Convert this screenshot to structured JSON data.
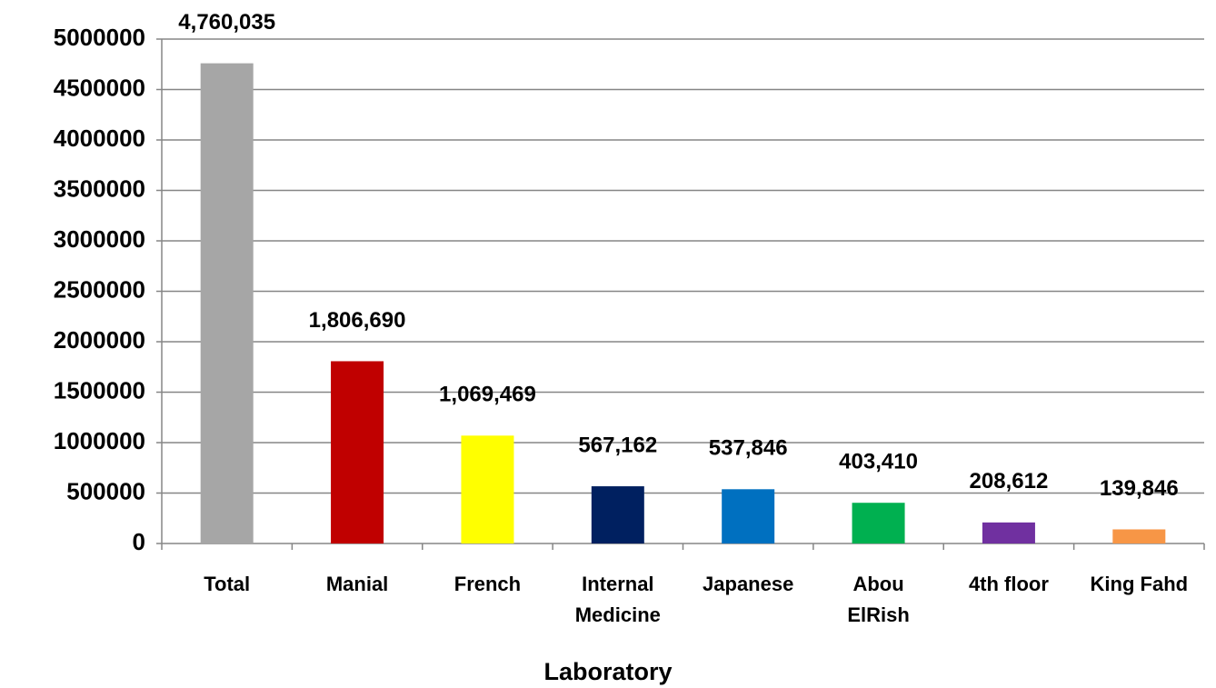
{
  "chart_data": {
    "type": "bar",
    "x_label": "Laboratory",
    "categories": [
      "Total",
      "Manial",
      "French",
      "Internal Medicine",
      "Japanese",
      "Abou ElRish",
      "4th floor",
      "King Fahd"
    ],
    "values": [
      4760035,
      1806690,
      1069469,
      567162,
      537846,
      403410,
      208612,
      139846
    ],
    "value_labels": [
      "4,760,035",
      "1,806,690",
      "1,069,469",
      "567,162",
      "537,846",
      "403,410",
      "208,612",
      "139,846"
    ],
    "colors": [
      "#a6a6a6",
      "#c00000",
      "#ffff00",
      "#002060",
      "#0070c0",
      "#00b050",
      "#7030a0",
      "#f79646"
    ],
    "ylim": [
      0,
      5000000
    ],
    "yticks": [
      0,
      500000,
      1000000,
      1500000,
      2000000,
      2500000,
      3000000,
      3500000,
      4000000,
      4500000,
      5000000
    ],
    "grid": true
  }
}
